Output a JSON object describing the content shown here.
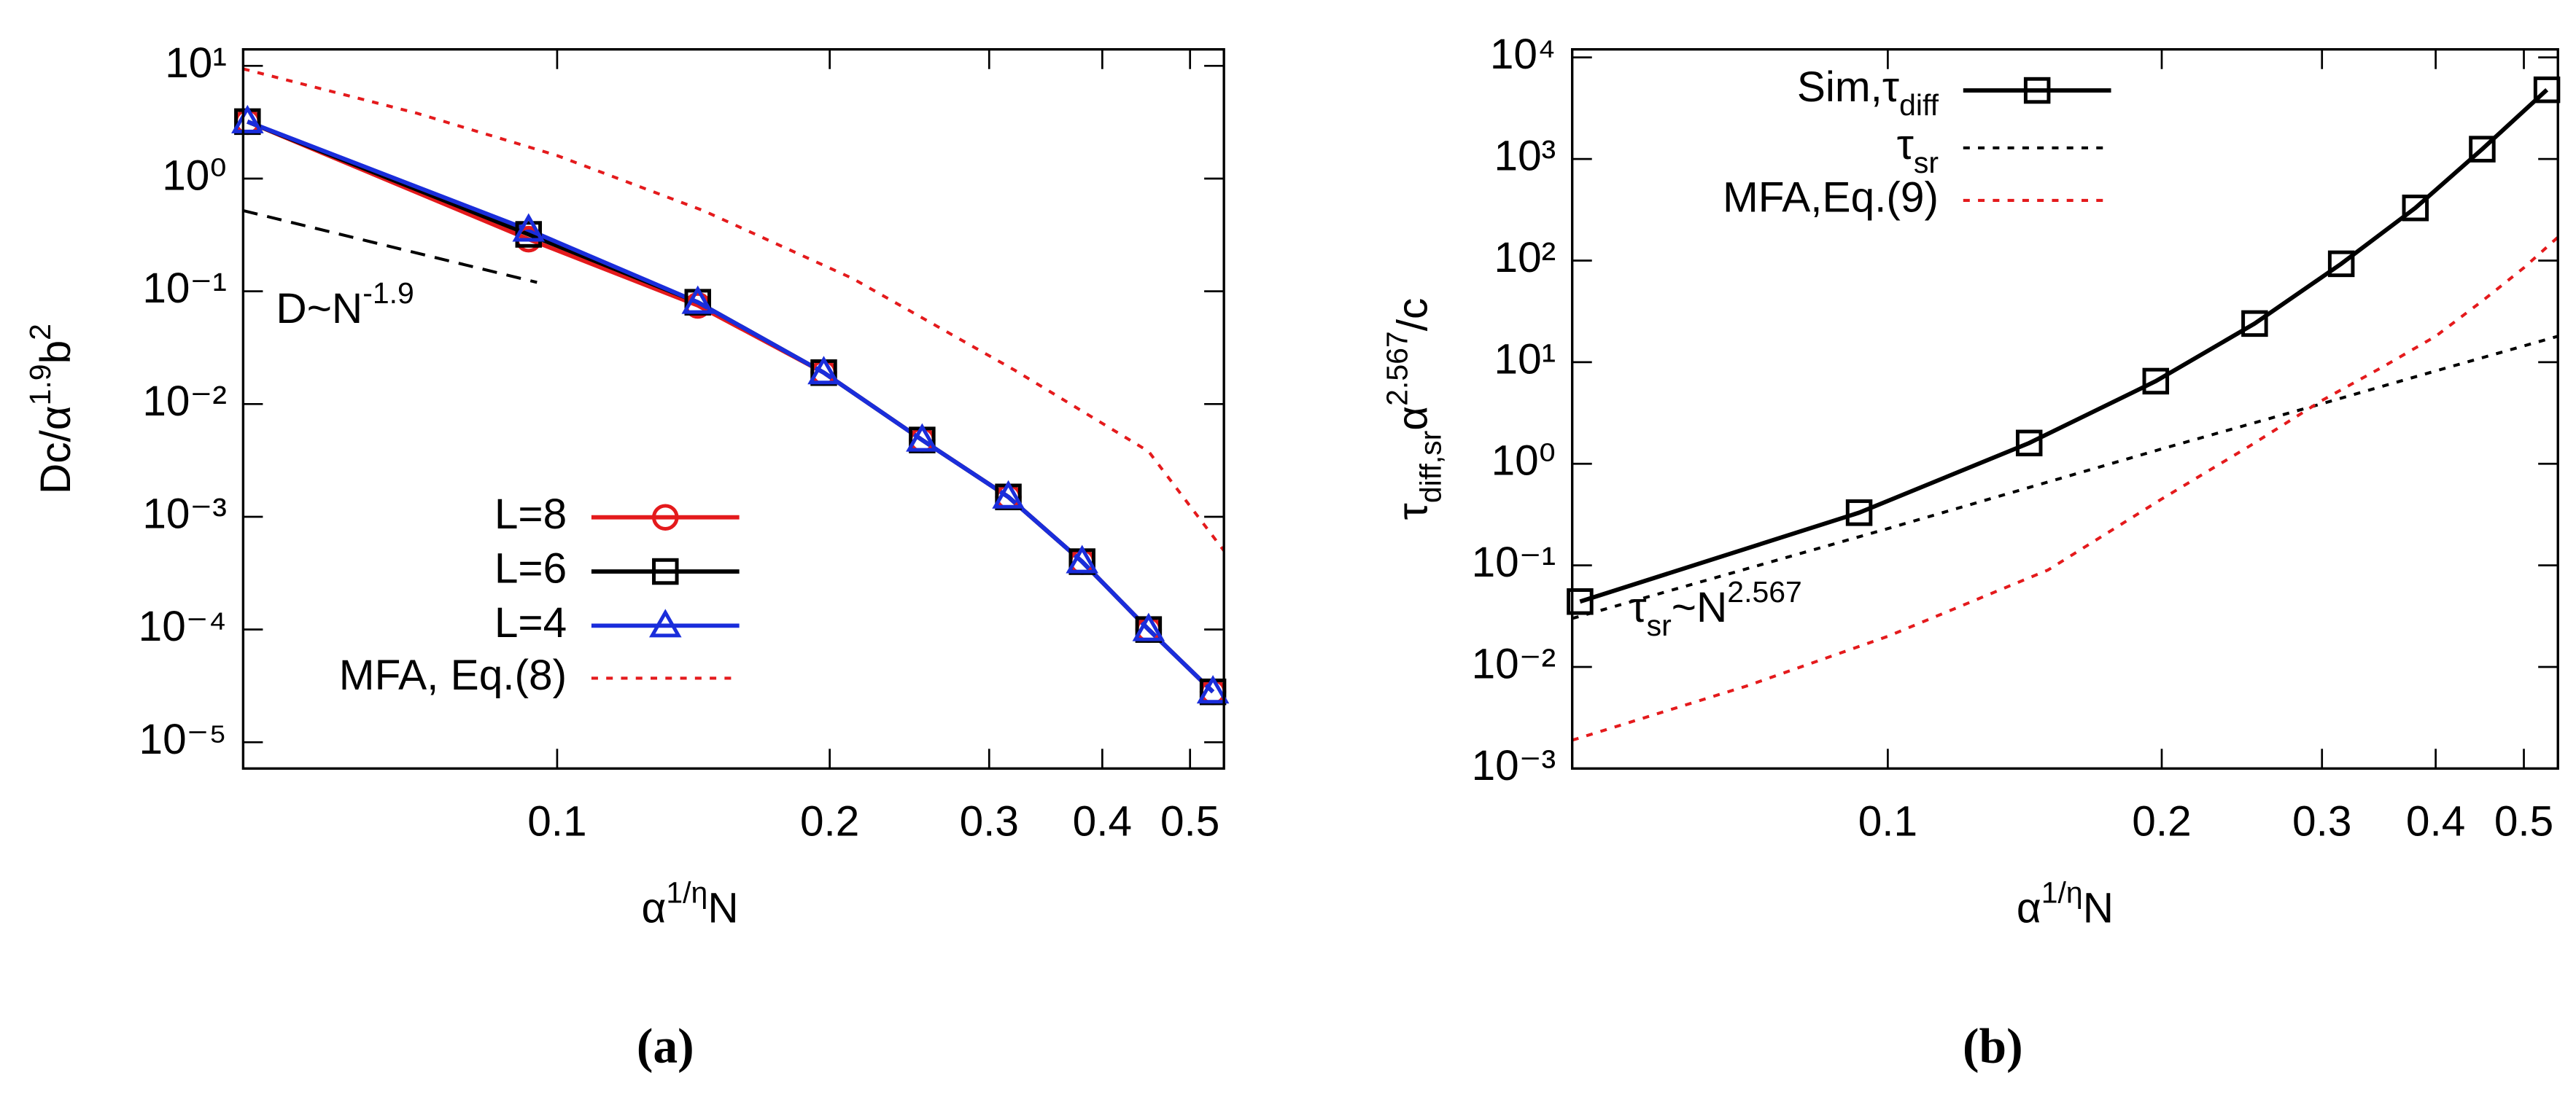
{
  "chart_data": [
    {
      "type": "line",
      "panel_label": "(a)",
      "x_label": [
        "α",
        "1/η",
        "N"
      ],
      "y_label": [
        "Dc/α",
        "1.9",
        "b",
        "2"
      ],
      "log_x": true,
      "log_y": true,
      "xlim": [
        0.045,
        0.545
      ],
      "ylim": [
        5.85e-06,
        14
      ],
      "xticks": [
        0.1,
        0.2,
        0.3,
        0.4,
        0.5
      ],
      "yticks": [
        {
          "value": 1e-05,
          "label": "10⁻⁵"
        },
        {
          "value": 0.0001,
          "label": "10⁻⁴"
        },
        {
          "value": 0.001,
          "label": "10⁻³"
        },
        {
          "value": 0.01,
          "label": "10⁻²"
        },
        {
          "value": 0.1,
          "label": "10⁻¹"
        },
        {
          "value": 1,
          "label": "10⁰"
        },
        {
          "value": 10,
          "label": "10¹"
        }
      ],
      "legend": "lower-left",
      "x": [
        0.0455,
        0.093,
        0.143,
        0.197,
        0.253,
        0.315,
        0.38,
        0.45,
        0.53
      ],
      "series": [
        {
          "name": "L=8",
          "color": "#e41a1c",
          "marker": "circle",
          "line_style": "solid",
          "values": [
            3.2,
            0.29,
            0.075,
            0.019,
            0.0048,
            0.0015,
            0.0004,
            0.0001,
            2.8e-05
          ]
        },
        {
          "name": "L=6",
          "color": "#000000",
          "marker": "square",
          "line_style": "solid",
          "values": [
            3.2,
            0.32,
            0.08,
            0.019,
            0.0048,
            0.0015,
            0.0004,
            0.0001,
            2.8e-05
          ]
        },
        {
          "name": "L=4",
          "color": "#1a2ddb",
          "marker": "triangle",
          "line_style": "solid",
          "values": [
            3.2,
            0.35,
            0.08,
            0.019,
            0.0048,
            0.0015,
            0.0004,
            0.0001,
            2.8e-05
          ]
        },
        {
          "name": "MFA, Eq.(8)",
          "color": "#e41a1c",
          "marker": null,
          "line_style": "dotted",
          "x": [
            0.045,
            0.07,
            0.1,
            0.145,
            0.212,
            0.32,
            0.45,
            0.545
          ],
          "values": [
            9.4,
            3.8,
            1.6,
            0.52,
            0.13,
            0.02,
            0.0038,
            0.0005
          ]
        }
      ],
      "guides": [
        {
          "color": "#000000",
          "line_style": "dashed",
          "x": [
            0.045,
            0.095
          ],
          "values": [
            0.52,
            0.12
          ]
        }
      ],
      "annotations": [
        [
          "D~N",
          "-1.9"
        ]
      ]
    },
    {
      "type": "line",
      "panel_label": "(b)",
      "x_label": [
        "α",
        "1/η",
        "N"
      ],
      "y_label": [
        "τ",
        "diff,sr",
        "α",
        "2.567",
        "/c"
      ],
      "log_x": true,
      "log_y": true,
      "xlim": [
        0.045,
        0.545
      ],
      "ylim": [
        0.001,
        12000
      ],
      "xticks": [
        0.1,
        0.2,
        0.3,
        0.4,
        0.5
      ],
      "yticks": [
        {
          "value": 0.001,
          "label": "10⁻³"
        },
        {
          "value": 0.01,
          "label": "10⁻²"
        },
        {
          "value": 0.1,
          "label": "10⁻¹"
        },
        {
          "value": 1,
          "label": "10⁰"
        },
        {
          "value": 10,
          "label": "10¹"
        },
        {
          "value": 100,
          "label": "10²"
        },
        {
          "value": 1000,
          "label": "10³"
        },
        {
          "value": 10000,
          "label": "10⁴"
        }
      ],
      "legend": "upper-left",
      "x": [
        0.0459,
        0.093,
        0.143,
        0.197,
        0.253,
        0.315,
        0.38,
        0.45,
        0.53
      ],
      "series": [
        {
          "name": [
            "Sim,τ",
            "diff"
          ],
          "color": "#000000",
          "marker": "square",
          "line_style": "solid",
          "values": [
            0.044,
            0.33,
            1.6,
            6.5,
            24,
            93,
            330,
            1250,
            4800
          ]
        },
        {
          "name": [
            "τ",
            "sr"
          ],
          "color": "#000000",
          "marker": null,
          "line_style": "dotted",
          "x": [
            0.045,
            0.1,
            0.2,
            0.3,
            0.4,
            0.545
          ],
          "values": [
            0.03,
            0.23,
            1.4,
            3.9,
            8.2,
            18
          ]
        },
        {
          "name": "MFA,Eq.(9)",
          "color": "#e41a1c",
          "marker": null,
          "line_style": "dotted",
          "x": [
            0.045,
            0.07,
            0.1,
            0.15,
            0.2,
            0.25,
            0.3,
            0.35,
            0.4,
            0.45,
            0.5,
            0.545
          ],
          "values": [
            0.0019,
            0.0065,
            0.02,
            0.09,
            0.45,
            1.5,
            4.2,
            9,
            18,
            40,
            85,
            170
          ]
        }
      ],
      "annotations": [
        [
          "τ",
          "sr",
          "~N",
          "2.567"
        ]
      ]
    }
  ]
}
